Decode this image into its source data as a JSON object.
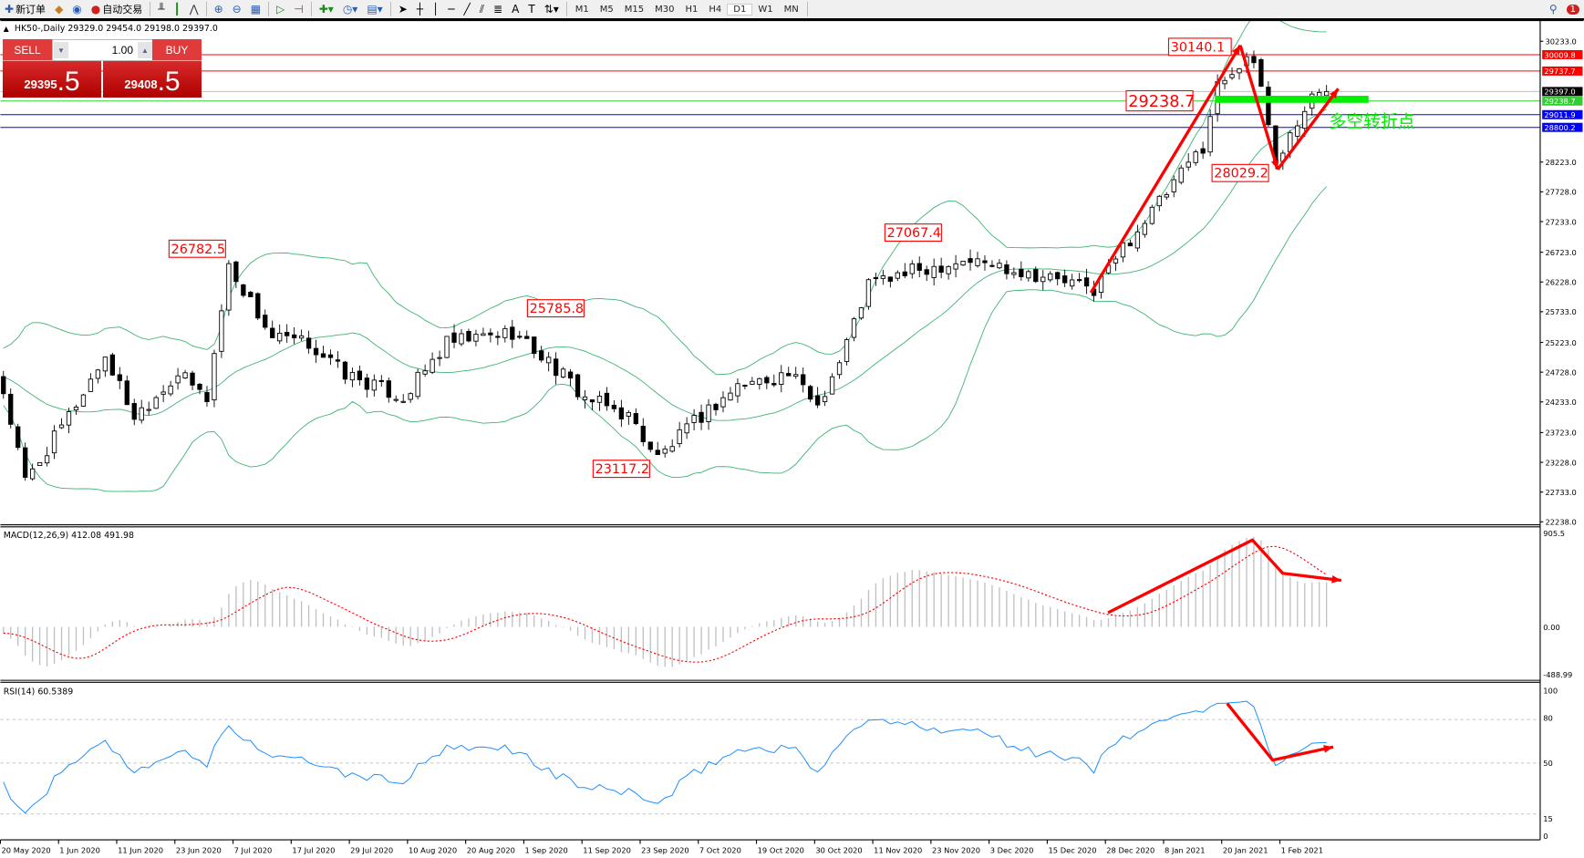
{
  "toolbar": {
    "new_order": "新订单",
    "auto_trading": "自动交易",
    "timeframes": [
      "M1",
      "M5",
      "M15",
      "M30",
      "H1",
      "H4",
      "D1",
      "W1",
      "MN"
    ],
    "active_timeframe": "D1",
    "notification_count": "1"
  },
  "chart": {
    "title": "HK50-,Daily  29329.0 29454.0 29198.0 29397.0",
    "price_ticks": [
      "30233.0",
      "28223.0",
      "27728.0",
      "27233.0",
      "26723.0",
      "26228.0",
      "25733.0",
      "25223.0",
      "24728.0",
      "24233.0",
      "23723.0",
      "23228.0",
      "22733.0",
      "22238.0"
    ],
    "price_tick_values": [
      30233,
      28223,
      27728,
      27233,
      26723,
      26228,
      25733,
      25223,
      24728,
      24233,
      23723,
      23228,
      22733,
      22238
    ],
    "hlines": [
      {
        "value": 30009.8,
        "label": "30009.8",
        "color": "#ff0000"
      },
      {
        "value": 29737.7,
        "label": "29737.7",
        "color": "#ff0000"
      },
      {
        "value": 29397.0,
        "label": "29397.0",
        "color": "#c0c0c0",
        "label_bg": "#000000"
      },
      {
        "value": 29238.7,
        "label": "29238.7",
        "color": "#32cd32"
      },
      {
        "value": 29011.9,
        "label": "29011.9",
        "color": "#0000ff"
      },
      {
        "value": 28800.2,
        "label": "28800.2",
        "color": "#0000ff"
      }
    ],
    "annotations": [
      "30140.1",
      "29238.7",
      "28029.2",
      "27067.4",
      "26782.5",
      "25785.8",
      "23117.2"
    ],
    "pivot_text": "多空转折点",
    "colors": {
      "band": "#3cb371",
      "arrow": "#ff0000",
      "pivot": "#00ee00",
      "rsi": "#1e90ff",
      "signal": "#ff0000",
      "hist": "#c0c0c0"
    }
  },
  "trade_panel": {
    "sell_label": "SELL",
    "buy_label": "BUY",
    "lot": "1.00",
    "sell_big": "29395",
    "sell_small": ".5",
    "buy_big": "29408",
    "buy_small": ".5"
  },
  "macd": {
    "title": "MACD(12,26,9) 412.08 491.98",
    "ticks": [
      "905.5",
      "0.00",
      "-488.99"
    ]
  },
  "rsi": {
    "title": "RSI(14) 60.5389",
    "ticks": [
      "100",
      "80",
      "50",
      "15",
      "0"
    ]
  },
  "dates": [
    "20 May 2020",
    "1 Jun 2020",
    "11 Jun 2020",
    "23 Jun 2020",
    "7 Jul 2020",
    "17 Jul 2020",
    "29 Jul 2020",
    "10 Aug 2020",
    "20 Aug 2020",
    "1 Sep 2020",
    "11 Sep 2020",
    "23 Sep 2020",
    "7 Oct 2020",
    "19 Oct 2020",
    "30 Oct 2020",
    "11 Nov 2020",
    "23 Nov 2020",
    "3 Dec 2020",
    "15 Dec 2020",
    "28 Dec 2020",
    "8 Jan 2021",
    "20 Jan 2021",
    "1 Feb 2021"
  ],
  "chart_data": {
    "type": "candlestick",
    "close_keypoints": [
      [
        0,
        24400
      ],
      [
        3,
        22900
      ],
      [
        8,
        23800
      ],
      [
        14,
        25000
      ],
      [
        18,
        24000
      ],
      [
        24,
        24700
      ],
      [
        28,
        24300
      ],
      [
        31,
        26500
      ],
      [
        37,
        25300
      ],
      [
        42,
        25200
      ],
      [
        47,
        24700
      ],
      [
        55,
        24300
      ],
      [
        61,
        25200
      ],
      [
        70,
        25400
      ],
      [
        75,
        24900
      ],
      [
        80,
        24300
      ],
      [
        86,
        24000
      ],
      [
        90,
        23300
      ],
      [
        96,
        24000
      ],
      [
        101,
        24500
      ],
      [
        108,
        24700
      ],
      [
        112,
        24200
      ],
      [
        115,
        24900
      ],
      [
        119,
        26200
      ],
      [
        125,
        26400
      ],
      [
        132,
        26600
      ],
      [
        137,
        26500
      ],
      [
        144,
        26300
      ],
      [
        150,
        26100
      ],
      [
        154,
        26800
      ],
      [
        160,
        27700
      ],
      [
        165,
        28500
      ],
      [
        167,
        29500
      ],
      [
        171,
        30000
      ],
      [
        173,
        29500
      ],
      [
        175,
        28200
      ],
      [
        178,
        28900
      ],
      [
        180,
        29300
      ],
      [
        182,
        29397
      ]
    ],
    "last_ohlc": {
      "open": 29329.0,
      "high": 29454.0,
      "low": 29198.0,
      "close": 29397.0
    },
    "price_range": [
      22238,
      30233
    ],
    "indicators": [
      "Bollinger Bands(20,2)",
      "MACD(12,26,9)",
      "RSI(14)"
    ],
    "rsi_levels": [
      80,
      50,
      15
    ]
  }
}
